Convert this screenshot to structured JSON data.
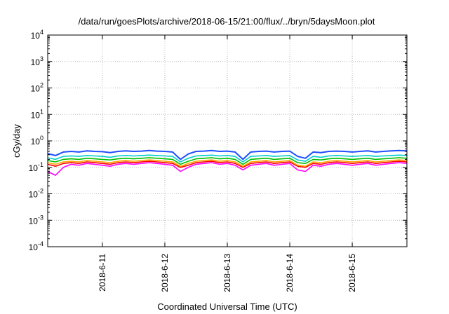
{
  "chart_data": {
    "type": "line",
    "title": "/data/run/goesPlots/archive/2018-06-15/21:00/flux/../bryn/5daysMoon.plot",
    "xlabel": "Coordinated Universal Time (UTC)",
    "ylabel": "cGy/day",
    "yscale": "log",
    "ylim": [
      0.0001,
      10000
    ],
    "xlim": [
      "2018-06-10 03:00",
      "2018-06-15 21:00"
    ],
    "grid": true,
    "y_ticks": [
      {
        "value": 0.0001,
        "base": "10",
        "exp": "-4"
      },
      {
        "value": 0.001,
        "base": "10",
        "exp": "-3"
      },
      {
        "value": 0.01,
        "base": "10",
        "exp": "-2"
      },
      {
        "value": 0.1,
        "base": "10",
        "exp": "-1"
      },
      {
        "value": 1,
        "base": "10",
        "exp": "0"
      },
      {
        "value": 10,
        "base": "10",
        "exp": "1"
      },
      {
        "value": 100,
        "base": "10",
        "exp": "2"
      },
      {
        "value": 1000,
        "base": "10",
        "exp": "3"
      },
      {
        "value": 10000,
        "base": "10",
        "exp": "4"
      }
    ],
    "x_ticks": [
      {
        "value": "2018-06-11 00:00",
        "label": "2018-6-11"
      },
      {
        "value": "2018-06-12 00:00",
        "label": "2018-6-12"
      },
      {
        "value": "2018-06-13 00:00",
        "label": "2018-6-13"
      },
      {
        "value": "2018-06-14 00:00",
        "label": "2018-6-14"
      },
      {
        "value": "2018-06-15 00:00",
        "label": "2018-6-15"
      }
    ],
    "series_colors": [
      "#ff00ff",
      "#ff0000",
      "#ffa500",
      "#00c000",
      "#00cccc",
      "#2050ff"
    ],
    "x": [
      "2018-06-10 03:00",
      "2018-06-10 06:00",
      "2018-06-10 09:00",
      "2018-06-10 12:00",
      "2018-06-10 15:00",
      "2018-06-10 18:00",
      "2018-06-10 21:00",
      "2018-06-11 00:00",
      "2018-06-11 03:00",
      "2018-06-11 06:00",
      "2018-06-11 09:00",
      "2018-06-11 12:00",
      "2018-06-11 15:00",
      "2018-06-11 18:00",
      "2018-06-11 21:00",
      "2018-06-12 00:00",
      "2018-06-12 03:00",
      "2018-06-12 06:00",
      "2018-06-12 09:00",
      "2018-06-12 12:00",
      "2018-06-12 15:00",
      "2018-06-12 18:00",
      "2018-06-12 21:00",
      "2018-06-13 00:00",
      "2018-06-13 03:00",
      "2018-06-13 06:00",
      "2018-06-13 09:00",
      "2018-06-13 12:00",
      "2018-06-13 15:00",
      "2018-06-13 18:00",
      "2018-06-13 21:00",
      "2018-06-14 00:00",
      "2018-06-14 03:00",
      "2018-06-14 06:00",
      "2018-06-14 09:00",
      "2018-06-14 12:00",
      "2018-06-14 15:00",
      "2018-06-14 18:00",
      "2018-06-14 21:00",
      "2018-06-15 00:00",
      "2018-06-15 03:00",
      "2018-06-15 06:00",
      "2018-06-15 09:00",
      "2018-06-15 12:00",
      "2018-06-15 15:00",
      "2018-06-15 18:00",
      "2018-06-15 21:00"
    ],
    "series": [
      {
        "values": [
          0.07,
          0.05,
          0.1,
          0.13,
          0.12,
          0.14,
          0.13,
          0.12,
          0.11,
          0.13,
          0.14,
          0.13,
          0.14,
          0.15,
          0.14,
          0.13,
          0.12,
          0.07,
          0.1,
          0.13,
          0.14,
          0.15,
          0.13,
          0.14,
          0.12,
          0.08,
          0.12,
          0.13,
          0.14,
          0.12,
          0.13,
          0.14,
          0.08,
          0.07,
          0.12,
          0.11,
          0.13,
          0.14,
          0.13,
          0.12,
          0.13,
          0.14,
          0.12,
          0.13,
          0.14,
          0.15,
          0.14
        ]
      },
      {
        "values": [
          0.13,
          0.11,
          0.14,
          0.15,
          0.14,
          0.16,
          0.15,
          0.14,
          0.13,
          0.15,
          0.16,
          0.15,
          0.16,
          0.17,
          0.16,
          0.15,
          0.14,
          0.1,
          0.12,
          0.15,
          0.16,
          0.17,
          0.15,
          0.16,
          0.14,
          0.1,
          0.14,
          0.15,
          0.16,
          0.14,
          0.15,
          0.16,
          0.11,
          0.1,
          0.14,
          0.13,
          0.15,
          0.16,
          0.15,
          0.14,
          0.15,
          0.16,
          0.14,
          0.15,
          0.16,
          0.17,
          0.16
        ]
      },
      {
        "values": [
          0.15,
          0.13,
          0.16,
          0.17,
          0.16,
          0.18,
          0.17,
          0.16,
          0.15,
          0.17,
          0.18,
          0.17,
          0.18,
          0.19,
          0.18,
          0.17,
          0.16,
          0.11,
          0.14,
          0.17,
          0.18,
          0.19,
          0.17,
          0.18,
          0.16,
          0.11,
          0.16,
          0.17,
          0.18,
          0.16,
          0.17,
          0.18,
          0.12,
          0.11,
          0.16,
          0.15,
          0.17,
          0.18,
          0.17,
          0.16,
          0.17,
          0.18,
          0.16,
          0.17,
          0.18,
          0.19,
          0.18
        ]
      },
      {
        "values": [
          0.18,
          0.16,
          0.2,
          0.21,
          0.2,
          0.22,
          0.21,
          0.2,
          0.19,
          0.21,
          0.22,
          0.21,
          0.22,
          0.23,
          0.22,
          0.21,
          0.2,
          0.13,
          0.17,
          0.21,
          0.22,
          0.23,
          0.21,
          0.22,
          0.2,
          0.13,
          0.2,
          0.21,
          0.22,
          0.2,
          0.21,
          0.22,
          0.15,
          0.14,
          0.2,
          0.19,
          0.21,
          0.22,
          0.21,
          0.2,
          0.21,
          0.22,
          0.2,
          0.21,
          0.22,
          0.23,
          0.22
        ]
      },
      {
        "values": [
          0.23,
          0.2,
          0.26,
          0.27,
          0.26,
          0.28,
          0.27,
          0.26,
          0.24,
          0.27,
          0.28,
          0.27,
          0.28,
          0.29,
          0.28,
          0.27,
          0.26,
          0.16,
          0.22,
          0.27,
          0.28,
          0.29,
          0.27,
          0.28,
          0.26,
          0.16,
          0.26,
          0.27,
          0.28,
          0.26,
          0.27,
          0.28,
          0.19,
          0.17,
          0.26,
          0.24,
          0.27,
          0.28,
          0.27,
          0.26,
          0.27,
          0.28,
          0.26,
          0.27,
          0.28,
          0.29,
          0.28
        ]
      },
      {
        "values": [
          0.33,
          0.28,
          0.38,
          0.4,
          0.38,
          0.42,
          0.4,
          0.39,
          0.36,
          0.4,
          0.42,
          0.4,
          0.41,
          0.43,
          0.41,
          0.4,
          0.38,
          0.2,
          0.32,
          0.4,
          0.41,
          0.43,
          0.4,
          0.41,
          0.38,
          0.2,
          0.38,
          0.4,
          0.41,
          0.38,
          0.4,
          0.41,
          0.26,
          0.22,
          0.38,
          0.36,
          0.4,
          0.41,
          0.4,
          0.38,
          0.4,
          0.42,
          0.38,
          0.4,
          0.42,
          0.43,
          0.42
        ]
      }
    ]
  }
}
